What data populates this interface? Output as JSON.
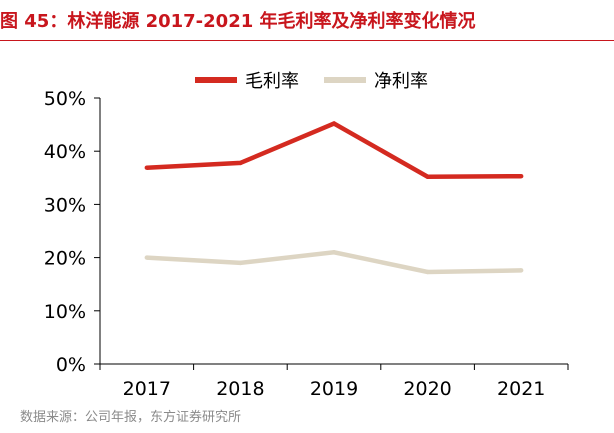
{
  "figure": {
    "title": "图 45：林洋能源 2017-2021 年毛利率及净利率变化情况",
    "source": "数据来源：公司年报，东方证券研究所"
  },
  "colors": {
    "title": "#c8161d",
    "gross_margin": "#d42a20",
    "net_margin": "#ddd5c3",
    "axis": "#000000"
  },
  "chart_data": {
    "type": "line",
    "title": "图 45：林洋能源 2017-2021 年毛利率及净利率变化情况",
    "xlabel": "",
    "ylabel": "",
    "categories": [
      "2017",
      "2018",
      "2019",
      "2020",
      "2021"
    ],
    "y_ticks": [
      "0%",
      "10%",
      "20%",
      "30%",
      "40%",
      "50%"
    ],
    "ylim": [
      0,
      50
    ],
    "y_unit": "%",
    "grid": false,
    "legend_position": "top-center",
    "series": [
      {
        "name": "毛利率",
        "values": [
          36.9,
          37.8,
          45.2,
          35.2,
          35.3
        ],
        "color": "#d42a20"
      },
      {
        "name": "净利率",
        "values": [
          20.0,
          19.0,
          21.0,
          17.3,
          17.6
        ],
        "color": "#ddd5c3"
      }
    ]
  }
}
